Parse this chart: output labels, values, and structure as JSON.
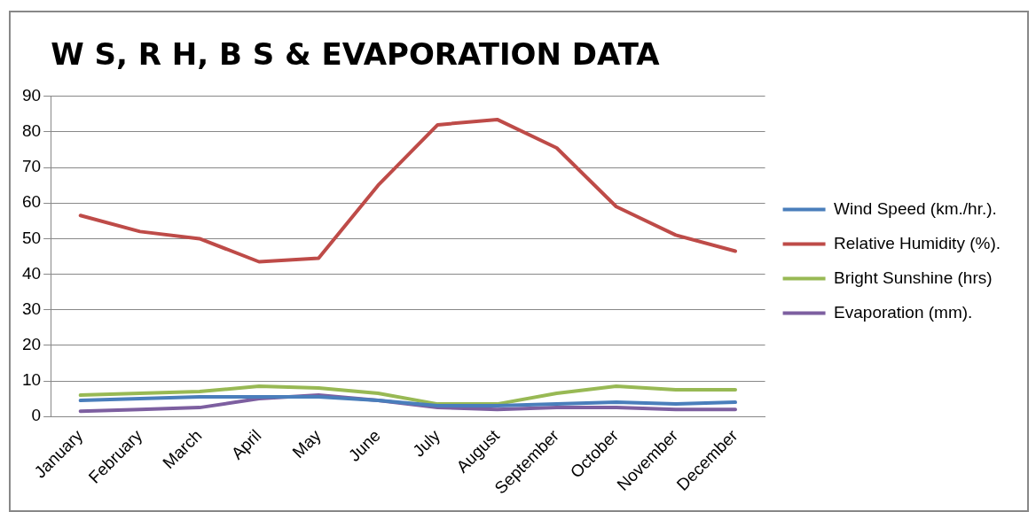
{
  "chart_data": {
    "type": "line",
    "title": "W S, R H, B S & EVAPORATION DATA",
    "categories": [
      "January",
      "February",
      "March",
      "April",
      "May",
      "June",
      "July",
      "August",
      "September",
      "October",
      "November",
      "December"
    ],
    "series": [
      {
        "name": "Wind Speed (km./hr.).",
        "color": "#4a7ebb",
        "values": [
          4.5,
          5,
          5.5,
          5.5,
          5.5,
          4.5,
          3,
          3,
          3.5,
          4,
          3.5,
          4
        ]
      },
      {
        "name": "Relative Humidity (%).",
        "color": "#be4b48",
        "values": [
          56.5,
          52,
          50,
          43.5,
          44.5,
          65,
          82,
          83.5,
          75.5,
          59,
          51,
          46.5
        ]
      },
      {
        "name": "Bright Sunshine (hrs)",
        "color": "#98b954",
        "values": [
          6,
          6.5,
          7,
          8.5,
          8,
          6.5,
          3.5,
          3.5,
          6.5,
          8.5,
          7.5,
          7.5
        ]
      },
      {
        "name": "Evaporation (mm).",
        "color": "#7d5fa0",
        "values": [
          1.5,
          2,
          2.5,
          5,
          6,
          4.5,
          2.5,
          2,
          2.5,
          2.5,
          2,
          2
        ]
      }
    ],
    "ylim": [
      0,
      90
    ],
    "yticks": [
      0,
      10,
      20,
      30,
      40,
      50,
      60,
      70,
      80,
      90
    ],
    "grid": "y",
    "legend": "right",
    "marker": "none",
    "line_style": "solid"
  }
}
